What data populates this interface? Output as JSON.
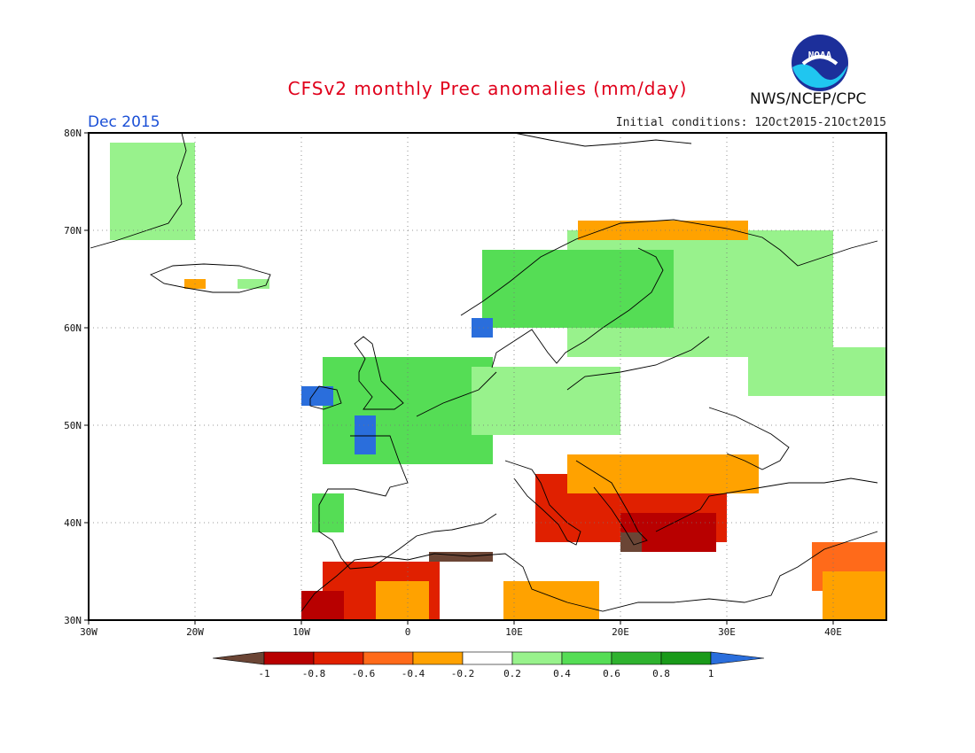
{
  "header": {
    "title": "CFSv2 monthly Prec anomalies (mm/day)",
    "month": "Dec 2015",
    "initial_conditions": "Initial conditions: 12Oct2015-21Oct2015",
    "agency": "NWS/NCEP/CPC",
    "logo_text": "NOAA",
    "logo_icon": "noaa-logo-icon"
  },
  "map": {
    "lon_range": [
      -30,
      45
    ],
    "lat_range": [
      30,
      80
    ],
    "lat_labels": [
      "80N",
      "70N",
      "60N",
      "50N",
      "40N",
      "30N"
    ],
    "lat_values": [
      80,
      70,
      60,
      50,
      40,
      30
    ],
    "lon_labels": [
      "30W",
      "20W",
      "10W",
      "0",
      "10E",
      "20E",
      "30E",
      "40E"
    ],
    "lon_values": [
      -30,
      -20,
      -10,
      0,
      10,
      20,
      30,
      40
    ],
    "grid": "dotted",
    "cell_deg": 1
  },
  "legend": {
    "labels": [
      "-1",
      "-0.8",
      "-0.6",
      "-0.4",
      "-0.2",
      "0.2",
      "0.4",
      "0.6",
      "0.8",
      "1"
    ],
    "colors": [
      "#6b4535",
      "#b80000",
      "#e02000",
      "#ff6a1a",
      "#ffa200",
      "#ffffff",
      "#98f28c",
      "#55dd55",
      "#2eb22e",
      "#1a9a1a",
      "#2a6edc"
    ]
  },
  "chart_data": {
    "type": "heatmap",
    "value_bins": [
      "<-1",
      "-1 to -0.8",
      "-0.8 to -0.6",
      "-0.6 to -0.4",
      "-0.4 to -0.2",
      "-0.2 to 0.2",
      "0.2 to 0.4",
      "0.4 to 0.6",
      "0.6 to 0.8",
      "0.8 to 1",
      ">1"
    ],
    "regions": [
      {
        "bin": 6,
        "lon": [
          -28,
          -20
        ],
        "lat": [
          69,
          79
        ]
      },
      {
        "bin": 6,
        "lon": [
          -16,
          -13
        ],
        "lat": [
          64,
          65
        ]
      },
      {
        "bin": 4,
        "lon": [
          -21,
          -19
        ],
        "lat": [
          64,
          65
        ]
      },
      {
        "bin": 6,
        "lon": [
          15,
          40
        ],
        "lat": [
          57,
          70
        ]
      },
      {
        "bin": 7,
        "lon": [
          7,
          25
        ],
        "lat": [
          60,
          68
        ]
      },
      {
        "bin": 10,
        "lon": [
          6,
          8
        ],
        "lat": [
          59,
          61
        ]
      },
      {
        "bin": 4,
        "lon": [
          16,
          32
        ],
        "lat": [
          69,
          71
        ]
      },
      {
        "bin": 6,
        "lon": [
          32,
          45
        ],
        "lat": [
          53,
          58
        ]
      },
      {
        "bin": 7,
        "lon": [
          -8,
          8
        ],
        "lat": [
          46,
          57
        ]
      },
      {
        "bin": 6,
        "lon": [
          6,
          20
        ],
        "lat": [
          49,
          56
        ]
      },
      {
        "bin": 10,
        "lon": [
          -10,
          -7
        ],
        "lat": [
          52,
          54
        ]
      },
      {
        "bin": 10,
        "lon": [
          -5,
          -3
        ],
        "lat": [
          47,
          51
        ]
      },
      {
        "bin": 10,
        "lon": [
          -9,
          -7
        ],
        "lat": [
          40,
          43
        ]
      },
      {
        "bin": 7,
        "lon": [
          -9,
          -6
        ],
        "lat": [
          39,
          43
        ]
      },
      {
        "bin": 2,
        "lon": [
          12,
          30
        ],
        "lat": [
          38,
          45
        ]
      },
      {
        "bin": 4,
        "lon": [
          15,
          33
        ],
        "lat": [
          43,
          47
        ]
      },
      {
        "bin": 1,
        "lon": [
          20,
          29
        ],
        "lat": [
          37,
          41
        ]
      },
      {
        "bin": 0,
        "lon": [
          20,
          22
        ],
        "lat": [
          37,
          39
        ]
      },
      {
        "bin": 3,
        "lon": [
          38,
          45
        ],
        "lat": [
          33,
          38
        ]
      },
      {
        "bin": 4,
        "lon": [
          39,
          45
        ],
        "lat": [
          30,
          35
        ]
      },
      {
        "bin": 2,
        "lon": [
          -8,
          3
        ],
        "lat": [
          30,
          36
        ]
      },
      {
        "bin": 1,
        "lon": [
          -10,
          -6
        ],
        "lat": [
          30,
          33
        ]
      },
      {
        "bin": 0,
        "lon": [
          2,
          8
        ],
        "lat": [
          36,
          37
        ]
      },
      {
        "bin": 4,
        "lon": [
          9,
          18
        ],
        "lat": [
          30,
          34
        ]
      },
      {
        "bin": 4,
        "lon": [
          -3,
          2
        ],
        "lat": [
          30,
          34
        ]
      }
    ]
  }
}
